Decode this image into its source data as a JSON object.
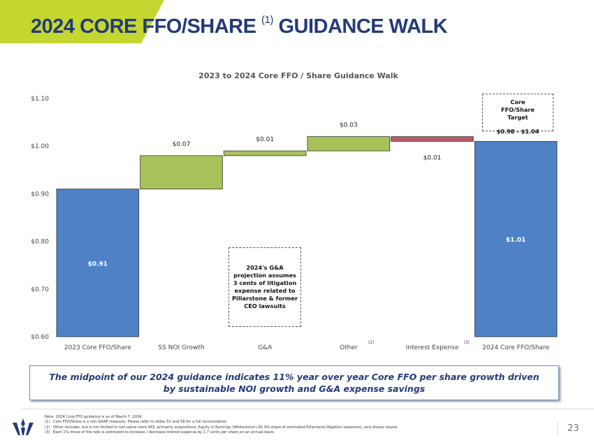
{
  "slide": {
    "title": "2024 CORE FFO/SHARE",
    "title_sup": "(1)",
    "title_suffix": "GUIDANCE WALK",
    "page_number": "23",
    "callout": "The midpoint of our 2024 guidance indicates 11% year over year Core FFO per share growth driven by sustainable NOI growth and G&A expense savings",
    "ga_note": "2024's G&A projection assumes 3 cents of litigation expense related to Pillarstone & former CEO lawsuits",
    "target_box": {
      "label": "Core FFO/Share Target",
      "range": "$0.98 - $1.04"
    },
    "notes": [
      {
        "n": "",
        "text": "Note: 2024 Core FFO guidance is as of March 7, 2024."
      },
      {
        "n": "(1)",
        "text": "Core FFO/Share is a non-GAAP measure. Please refer to slides 53 and 58 for a full reconciliation."
      },
      {
        "n": "(2)",
        "text": "Other includes, but is not limited to non-same store NOI, primarily acquisitions, Equity in Earnings (Whitestone's 81.4% share of estimated Pillarstone litigation expenses), and shares issued."
      },
      {
        "n": "(3)",
        "text": "Each 1% move of the rate is estimated to increase / decrease interest expense by 1.7 cents per share on an annual basis."
      }
    ],
    "colors": {
      "brand_navy": "#233a7a",
      "banner_green": "#c4d630"
    }
  },
  "chart_data": {
    "type": "waterfall",
    "title": "2023 to 2024 Core FFO / Share Guidance Walk",
    "categories": [
      "2023 Core FFO/Share",
      "SS NOI Growth",
      "G&A",
      "Other",
      "Interest Expense",
      "2024 Core FFO/Share"
    ],
    "category_superscripts": [
      "",
      "",
      "",
      "(2)",
      "(3)",
      ""
    ],
    "bars": [
      {
        "start": 0.6,
        "end": 0.91,
        "label": "$0.91",
        "kind": "total"
      },
      {
        "start": 0.91,
        "end": 0.98,
        "label": "$0.07",
        "kind": "increase"
      },
      {
        "start": 0.98,
        "end": 0.99,
        "label": "$0.01",
        "kind": "increase"
      },
      {
        "start": 0.99,
        "end": 1.02,
        "label": "$0.03",
        "kind": "increase"
      },
      {
        "start": 1.02,
        "end": 1.01,
        "label": "$0.01",
        "kind": "decrease"
      },
      {
        "start": 0.6,
        "end": 1.01,
        "label": "$1.01",
        "kind": "total"
      }
    ],
    "yticks": [
      "$0.60",
      "$0.70",
      "$0.80",
      "$0.90",
      "$1.00",
      "$1.10"
    ],
    "ylim": [
      0.6,
      1.1
    ],
    "grid": false,
    "colors": {
      "total": "#4f81c7",
      "increase": "#a8c25a",
      "decrease": "#b85c66"
    }
  }
}
